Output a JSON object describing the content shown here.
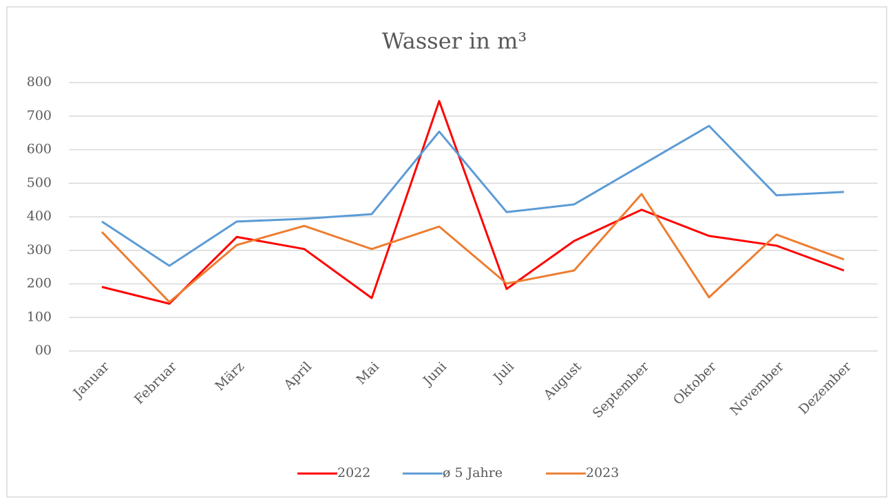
{
  "chart_data": {
    "type": "line",
    "title": "Wasser in m³",
    "categories": [
      "Januar",
      "Februar",
      "März",
      "April",
      "Mai",
      "Juni",
      "Juli",
      "August",
      "September",
      "Oktober",
      "November",
      "Dezember"
    ],
    "series": [
      {
        "name": "2022",
        "color": "#ff0000",
        "values": [
          191,
          141,
          340,
          304,
          158,
          745,
          185,
          328,
          421,
          343,
          314,
          240
        ]
      },
      {
        "name": "ø 5 Jahre",
        "color": "#5b9bd5",
        "values": [
          386,
          254,
          386,
          394,
          408,
          654,
          414,
          437,
          554,
          671,
          464,
          474
        ]
      },
      {
        "name": "2023",
        "color": "#ed7d31",
        "values": [
          355,
          146,
          316,
          373,
          304,
          371,
          201,
          240,
          468,
          160,
          347,
          273
        ]
      }
    ],
    "ylim": [
      0,
      800
    ],
    "yticks": [
      {
        "value": 0,
        "label": "00"
      },
      100,
      200,
      300,
      400,
      500,
      600,
      700,
      800
    ],
    "grid": true,
    "legend": "bottom"
  }
}
